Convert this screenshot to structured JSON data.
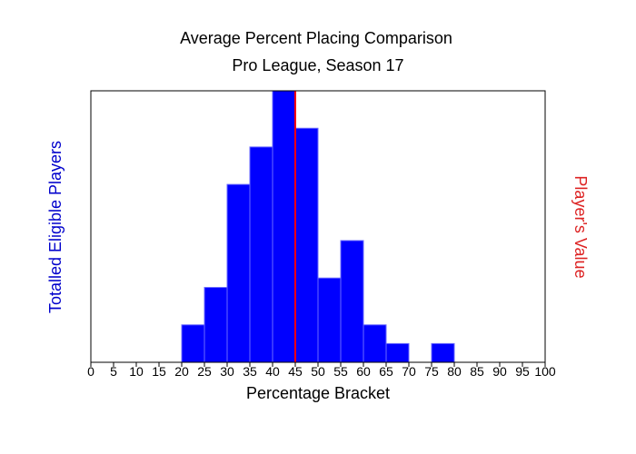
{
  "chart_data": {
    "type": "bar",
    "title": "Average Percent Placing Comparison",
    "subtitle": "Pro League, Season 17",
    "xlabel": "Percentage Bracket",
    "ylabel": "Totalled Eligible Players",
    "y2label": "Player's Value",
    "xlim": [
      0,
      100
    ],
    "ylim": [
      0,
      14.5
    ],
    "x_ticks": [
      "0",
      "5",
      "10",
      "15",
      "20",
      "25",
      "30",
      "35",
      "40",
      "45",
      "50",
      "55",
      "60",
      "65",
      "70",
      "75",
      "80",
      "85",
      "90",
      "95",
      "100"
    ],
    "bin_width": 5,
    "bins": [
      {
        "x": 20,
        "count": 2
      },
      {
        "x": 25,
        "count": 4
      },
      {
        "x": 30,
        "count": 9.5
      },
      {
        "x": 35,
        "count": 11.5
      },
      {
        "x": 40,
        "count": 14.5
      },
      {
        "x": 45,
        "count": 12.5
      },
      {
        "x": 50,
        "count": 4.5
      },
      {
        "x": 55,
        "count": 6.5
      },
      {
        "x": 60,
        "count": 2
      },
      {
        "x": 65,
        "count": 1
      },
      {
        "x": 75,
        "count": 1
      }
    ],
    "reference_line": {
      "x": 45
    },
    "grid": false,
    "colors": {
      "bars": "#0000ff",
      "bar_edge": "#6a6aff",
      "reference_line": "#ff0000",
      "ylabel": "#0000cc",
      "y2label": "#dd2222",
      "axis": "#000000"
    }
  }
}
